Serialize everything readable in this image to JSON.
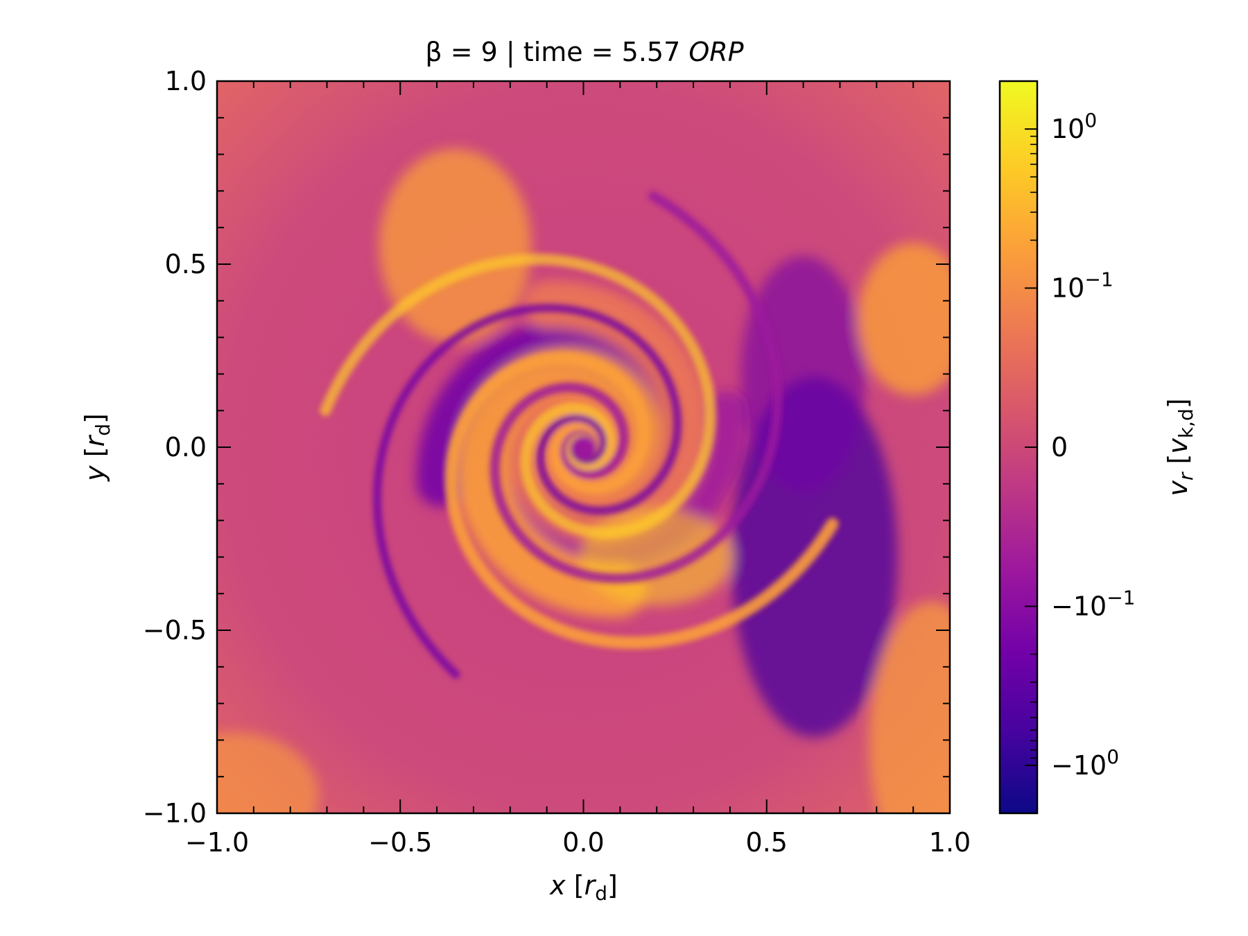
{
  "chart_data": {
    "type": "heatmap",
    "title": {
      "prefix": "β = 9 | time = 5.57 ",
      "suffix": "ORP"
    },
    "xlabel": {
      "var": "x",
      "bracket_open": " [",
      "unit": "r",
      "unit_sub": "d",
      "bracket_close": "]"
    },
    "ylabel": {
      "var": "y",
      "bracket_open": " [",
      "unit": "r",
      "unit_sub": "d",
      "bracket_close": "]"
    },
    "xlim": [
      -1.0,
      1.0
    ],
    "ylim": [
      -1.0,
      1.0
    ],
    "xticks": [
      {
        "value": -1.0,
        "label": "−1.0"
      },
      {
        "value": -0.5,
        "label": "−0.5"
      },
      {
        "value": 0.0,
        "label": "0.0"
      },
      {
        "value": 0.5,
        "label": "0.5"
      },
      {
        "value": 1.0,
        "label": "1.0"
      }
    ],
    "yticks": [
      {
        "value": -1.0,
        "label": "−1.0"
      },
      {
        "value": -0.5,
        "label": "−0.5"
      },
      {
        "value": 0.0,
        "label": "0.0"
      },
      {
        "value": 0.5,
        "label": "0.5"
      },
      {
        "value": 1.0,
        "label": "1.0"
      }
    ],
    "minor_tick_step": 0.1,
    "colormap": "plasma",
    "colorbar": {
      "scale": "symlog",
      "linthresh": 0.1,
      "range": [
        -2.0,
        2.0
      ],
      "label": {
        "var": "v",
        "var_sub": "r",
        "bracket_open": " [",
        "unit": "v",
        "unit_sub": "k,d",
        "bracket_close": "]"
      },
      "ticks": [
        {
          "value": 1.0,
          "base": "10",
          "exp": "0"
        },
        {
          "value": 0.1,
          "base": "10",
          "exp": "−1"
        },
        {
          "value": 0.0,
          "base": "0",
          "exp": ""
        },
        {
          "value": -0.1,
          "base": "−10",
          "exp": "−1"
        },
        {
          "value": -1.0,
          "base": "−10",
          "exp": "0"
        }
      ]
    },
    "field_description": "spiral pattern of radial velocity; tightly wound spiral arms around the center; outflow (positive, orange-yellow) arms interleaved with inflow (negative, purple) arms; strong inflow region at x≈0.5–0.8, y≈-0.7–0.3"
  },
  "colors": {
    "plasma": [
      "#0d0887",
      "#46039f",
      "#7201a8",
      "#9c179e",
      "#bd3786",
      "#d8576b",
      "#ed7953",
      "#fb9f3a",
      "#fdca26",
      "#f0f921"
    ]
  }
}
